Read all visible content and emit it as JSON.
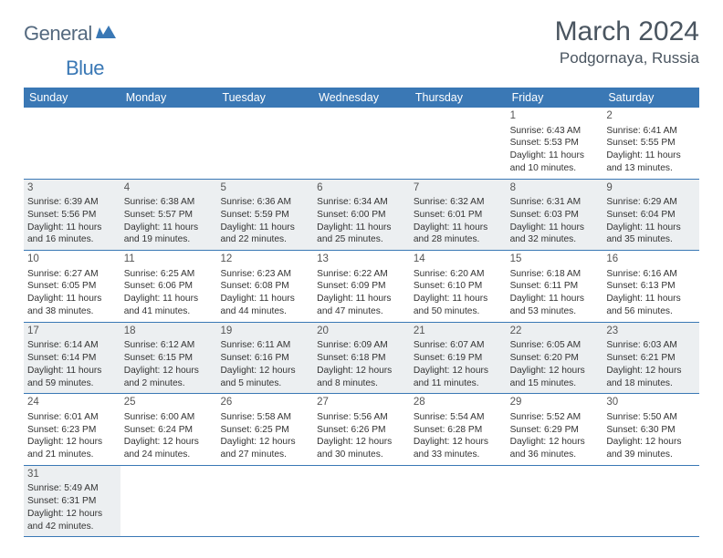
{
  "logo": {
    "part1": "General",
    "part2": "Blue"
  },
  "title": "March 2024",
  "location": "Podgornaya, Russia",
  "colors": {
    "header_bg": "#3a78b5",
    "header_text": "#ffffff",
    "shaded_bg": "#eceff1",
    "border": "#3a78b5",
    "title_color": "#4a5560",
    "logo_gray": "#54697f",
    "logo_blue": "#3a78b5"
  },
  "daysOfWeek": [
    "Sunday",
    "Monday",
    "Tuesday",
    "Wednesday",
    "Thursday",
    "Friday",
    "Saturday"
  ],
  "firstDayOffset": 5,
  "numWeeks": 6,
  "days": [
    {
      "n": "1",
      "sr": "Sunrise: 6:43 AM",
      "ss": "Sunset: 5:53 PM",
      "dl": "Daylight: 11 hours and 10 minutes."
    },
    {
      "n": "2",
      "sr": "Sunrise: 6:41 AM",
      "ss": "Sunset: 5:55 PM",
      "dl": "Daylight: 11 hours and 13 minutes."
    },
    {
      "n": "3",
      "sr": "Sunrise: 6:39 AM",
      "ss": "Sunset: 5:56 PM",
      "dl": "Daylight: 11 hours and 16 minutes."
    },
    {
      "n": "4",
      "sr": "Sunrise: 6:38 AM",
      "ss": "Sunset: 5:57 PM",
      "dl": "Daylight: 11 hours and 19 minutes."
    },
    {
      "n": "5",
      "sr": "Sunrise: 6:36 AM",
      "ss": "Sunset: 5:59 PM",
      "dl": "Daylight: 11 hours and 22 minutes."
    },
    {
      "n": "6",
      "sr": "Sunrise: 6:34 AM",
      "ss": "Sunset: 6:00 PM",
      "dl": "Daylight: 11 hours and 25 minutes."
    },
    {
      "n": "7",
      "sr": "Sunrise: 6:32 AM",
      "ss": "Sunset: 6:01 PM",
      "dl": "Daylight: 11 hours and 28 minutes."
    },
    {
      "n": "8",
      "sr": "Sunrise: 6:31 AM",
      "ss": "Sunset: 6:03 PM",
      "dl": "Daylight: 11 hours and 32 minutes."
    },
    {
      "n": "9",
      "sr": "Sunrise: 6:29 AM",
      "ss": "Sunset: 6:04 PM",
      "dl": "Daylight: 11 hours and 35 minutes."
    },
    {
      "n": "10",
      "sr": "Sunrise: 6:27 AM",
      "ss": "Sunset: 6:05 PM",
      "dl": "Daylight: 11 hours and 38 minutes."
    },
    {
      "n": "11",
      "sr": "Sunrise: 6:25 AM",
      "ss": "Sunset: 6:06 PM",
      "dl": "Daylight: 11 hours and 41 minutes."
    },
    {
      "n": "12",
      "sr": "Sunrise: 6:23 AM",
      "ss": "Sunset: 6:08 PM",
      "dl": "Daylight: 11 hours and 44 minutes."
    },
    {
      "n": "13",
      "sr": "Sunrise: 6:22 AM",
      "ss": "Sunset: 6:09 PM",
      "dl": "Daylight: 11 hours and 47 minutes."
    },
    {
      "n": "14",
      "sr": "Sunrise: 6:20 AM",
      "ss": "Sunset: 6:10 PM",
      "dl": "Daylight: 11 hours and 50 minutes."
    },
    {
      "n": "15",
      "sr": "Sunrise: 6:18 AM",
      "ss": "Sunset: 6:11 PM",
      "dl": "Daylight: 11 hours and 53 minutes."
    },
    {
      "n": "16",
      "sr": "Sunrise: 6:16 AM",
      "ss": "Sunset: 6:13 PM",
      "dl": "Daylight: 11 hours and 56 minutes."
    },
    {
      "n": "17",
      "sr": "Sunrise: 6:14 AM",
      "ss": "Sunset: 6:14 PM",
      "dl": "Daylight: 11 hours and 59 minutes."
    },
    {
      "n": "18",
      "sr": "Sunrise: 6:12 AM",
      "ss": "Sunset: 6:15 PM",
      "dl": "Daylight: 12 hours and 2 minutes."
    },
    {
      "n": "19",
      "sr": "Sunrise: 6:11 AM",
      "ss": "Sunset: 6:16 PM",
      "dl": "Daylight: 12 hours and 5 minutes."
    },
    {
      "n": "20",
      "sr": "Sunrise: 6:09 AM",
      "ss": "Sunset: 6:18 PM",
      "dl": "Daylight: 12 hours and 8 minutes."
    },
    {
      "n": "21",
      "sr": "Sunrise: 6:07 AM",
      "ss": "Sunset: 6:19 PM",
      "dl": "Daylight: 12 hours and 11 minutes."
    },
    {
      "n": "22",
      "sr": "Sunrise: 6:05 AM",
      "ss": "Sunset: 6:20 PM",
      "dl": "Daylight: 12 hours and 15 minutes."
    },
    {
      "n": "23",
      "sr": "Sunrise: 6:03 AM",
      "ss": "Sunset: 6:21 PM",
      "dl": "Daylight: 12 hours and 18 minutes."
    },
    {
      "n": "24",
      "sr": "Sunrise: 6:01 AM",
      "ss": "Sunset: 6:23 PM",
      "dl": "Daylight: 12 hours and 21 minutes."
    },
    {
      "n": "25",
      "sr": "Sunrise: 6:00 AM",
      "ss": "Sunset: 6:24 PM",
      "dl": "Daylight: 12 hours and 24 minutes."
    },
    {
      "n": "26",
      "sr": "Sunrise: 5:58 AM",
      "ss": "Sunset: 6:25 PM",
      "dl": "Daylight: 12 hours and 27 minutes."
    },
    {
      "n": "27",
      "sr": "Sunrise: 5:56 AM",
      "ss": "Sunset: 6:26 PM",
      "dl": "Daylight: 12 hours and 30 minutes."
    },
    {
      "n": "28",
      "sr": "Sunrise: 5:54 AM",
      "ss": "Sunset: 6:28 PM",
      "dl": "Daylight: 12 hours and 33 minutes."
    },
    {
      "n": "29",
      "sr": "Sunrise: 5:52 AM",
      "ss": "Sunset: 6:29 PM",
      "dl": "Daylight: 12 hours and 36 minutes."
    },
    {
      "n": "30",
      "sr": "Sunrise: 5:50 AM",
      "ss": "Sunset: 6:30 PM",
      "dl": "Daylight: 12 hours and 39 minutes."
    },
    {
      "n": "31",
      "sr": "Sunrise: 5:49 AM",
      "ss": "Sunset: 6:31 PM",
      "dl": "Daylight: 12 hours and 42 minutes."
    }
  ]
}
